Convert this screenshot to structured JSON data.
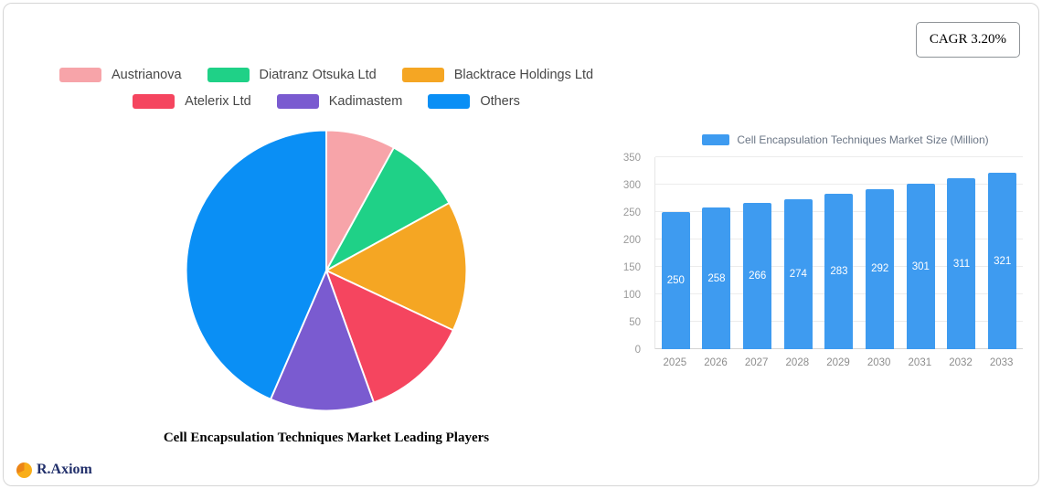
{
  "cagr_badge": "CAGR 3.20%",
  "logo_text": "R.Axiom",
  "chart_data": [
    {
      "type": "pie",
      "title": "Cell Encapsulation Techniques Market Leading Players",
      "legend_position": "top",
      "slices": [
        {
          "label": "Austrianova",
          "value": 8,
          "color": "#f7a4a9"
        },
        {
          "label": "Diatranz Otsuka Ltd",
          "value": 9,
          "color": "#1fd187"
        },
        {
          "label": "Blacktrace Holdings Ltd",
          "value": 15,
          "color": "#f5a623"
        },
        {
          "label": "Atelerix Ltd",
          "value": 12.5,
          "color": "#f5455f"
        },
        {
          "label": "Kadimastem",
          "value": 12,
          "color": "#7a5bd0"
        },
        {
          "label": "Others",
          "value": 43.5,
          "color": "#0a8ff5"
        }
      ]
    },
    {
      "type": "bar",
      "title": "Cell Encapsulation Techniques Market Size (Million)",
      "categories": [
        "2025",
        "2026",
        "2027",
        "2028",
        "2029",
        "2030",
        "2031",
        "2032",
        "2033"
      ],
      "values": [
        250,
        258,
        266,
        274,
        283,
        292,
        301,
        311,
        321
      ],
      "ylim": [
        0,
        350
      ],
      "yticks": [
        0,
        50,
        100,
        150,
        200,
        250,
        300,
        350
      ],
      "bar_color": "#3e9bf0",
      "grid": true,
      "legend_position": "top"
    }
  ]
}
